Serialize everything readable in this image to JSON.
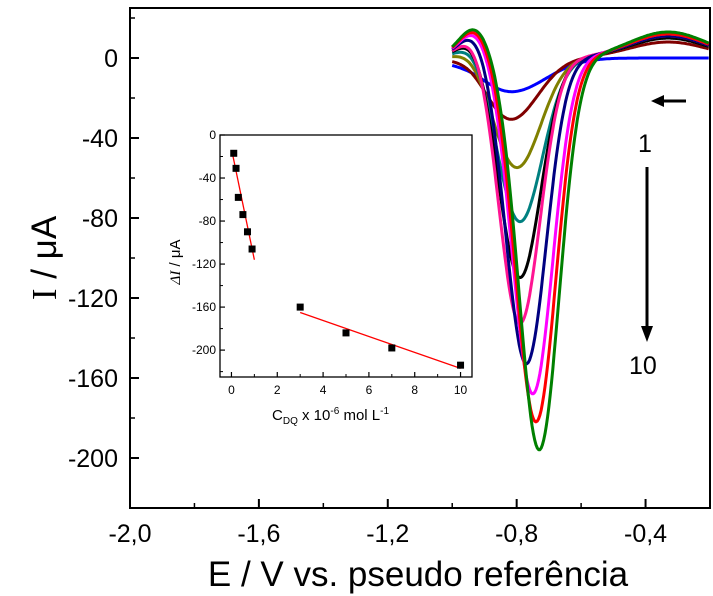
{
  "colors": {
    "axis": "#000000",
    "fit_line": "#ff0000",
    "curves": [
      "#0000ff",
      "#800000",
      "#808000",
      "#008080",
      "#000000",
      "#ff1493",
      "#000080",
      "#ff00ff",
      "#ff0000",
      "#008000"
    ]
  },
  "annotations": {
    "first_label": "1",
    "last_label": "10"
  },
  "chart_data": [
    {
      "type": "line",
      "xlabel": "E / V vs. pseudo referência",
      "ylabel_main": "I",
      "ylabel_sep": " / ",
      "ylabel_unit": "μA",
      "xlim": [
        -2.0,
        -0.2
      ],
      "ylim": [
        -225,
        25
      ],
      "xticks": [
        -2.0,
        -1.6,
        -1.2,
        -0.8,
        -0.4
      ],
      "xtick_labels": [
        "-2,0",
        "-1,6",
        "-1,2",
        "-0,8",
        "-0,4"
      ],
      "yticks": [
        0,
        -40,
        -80,
        -120,
        -160,
        -200
      ],
      "ytick_labels": [
        "0",
        "-40",
        "-80",
        "-120",
        "-160",
        "-200"
      ],
      "series": [
        {
          "peak_x": -0.82,
          "peak_y": -17,
          "width": 0.11,
          "tail": 0,
          "pre_peak": 2
        },
        {
          "peak_x": -0.82,
          "peak_y": -31,
          "width": 0.085,
          "tail": 8,
          "pre_peak": 4
        },
        {
          "peak_x": -0.8,
          "peak_y": -55,
          "width": 0.075,
          "tail": 10,
          "pre_peak": 6
        },
        {
          "peak_x": -0.79,
          "peak_y": -82,
          "width": 0.07,
          "tail": 10,
          "pre_peak": 8
        },
        {
          "peak_x": -0.79,
          "peak_y": -110,
          "width": 0.065,
          "tail": 10,
          "pre_peak": 10
        },
        {
          "peak_x": -0.79,
          "peak_y": -133,
          "width": 0.063,
          "tail": 11,
          "pre_peak": 11
        },
        {
          "peak_x": -0.77,
          "peak_y": -153,
          "width": 0.062,
          "tail": 11,
          "pre_peak": 12
        },
        {
          "peak_x": -0.75,
          "peak_y": -168,
          "width": 0.062,
          "tail": 12,
          "pre_peak": 13
        },
        {
          "peak_x": -0.74,
          "peak_y": -182,
          "width": 0.062,
          "tail": 12,
          "pre_peak": 14
        },
        {
          "peak_x": -0.73,
          "peak_y": -196,
          "width": 0.062,
          "tail": 13,
          "pre_peak": 15
        }
      ]
    },
    {
      "type": "scatter",
      "xlabel_main": "C",
      "xlabel_sub": "DQ",
      "xlabel_mid": " x 10",
      "xlabel_sup": "-6",
      "xlabel_end": " mol L",
      "xlabel_sup2": "-1",
      "ylabel_sym": "ΔI",
      "ylabel_rest": " / μA",
      "xlim": [
        -0.5,
        10.5
      ],
      "ylim": [
        -225,
        0
      ],
      "xticks": [
        0,
        2,
        4,
        6,
        8,
        10
      ],
      "xtick_labels": [
        "0",
        "2",
        "4",
        "6",
        "8",
        "10"
      ],
      "yticks": [
        0,
        -40,
        -80,
        -120,
        -160,
        -200
      ],
      "ytick_labels": [
        "0",
        "-40",
        "-80",
        "-120",
        "-160",
        "-200"
      ],
      "points": [
        {
          "x": 0.1,
          "y": -17
        },
        {
          "x": 0.2,
          "y": -31
        },
        {
          "x": 0.3,
          "y": -58
        },
        {
          "x": 0.5,
          "y": -74
        },
        {
          "x": 0.7,
          "y": -90
        },
        {
          "x": 0.9,
          "y": -106
        },
        {
          "x": 3.0,
          "y": -160
        },
        {
          "x": 5.0,
          "y": -184
        },
        {
          "x": 7.0,
          "y": -198
        },
        {
          "x": 10.0,
          "y": -214
        }
      ],
      "fits": [
        {
          "x": [
            0.05,
            1.0
          ],
          "y": [
            -18,
            -116
          ]
        },
        {
          "x": [
            3.0,
            10.0
          ],
          "y": [
            -165,
            -217
          ]
        }
      ]
    }
  ]
}
